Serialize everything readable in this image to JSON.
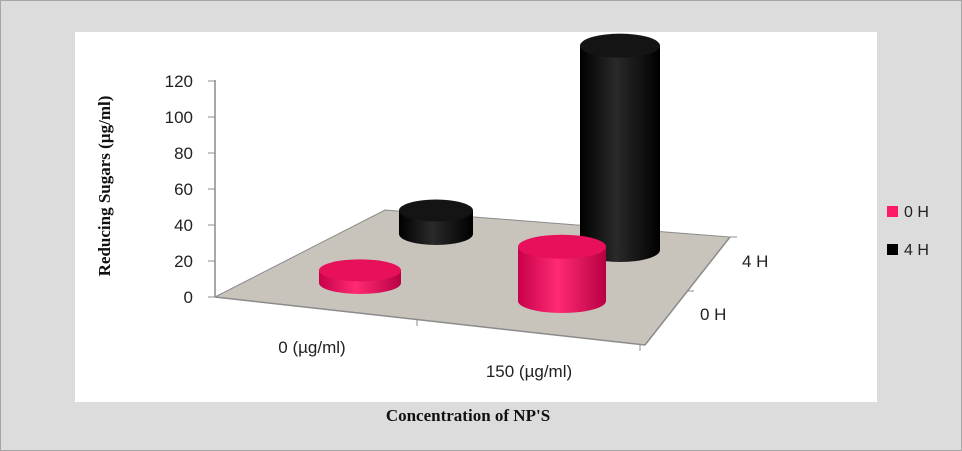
{
  "chart_data": {
    "type": "bar",
    "style": "3d-cylinder",
    "categories": [
      "0 (µg/ml)",
      "150 (µg/ml)"
    ],
    "depth_categories": [
      "0 H",
      "4 H"
    ],
    "series": [
      {
        "name": "0 H",
        "values": [
          7,
          30
        ],
        "color": "#ff1a66"
      },
      {
        "name": "4 H",
        "values": [
          13,
          113
        ],
        "color": "#000000"
      }
    ],
    "ylabel": "Reducing Sugars (µg/ml)",
    "xlabel": "Concentration of NP'S",
    "ylim": [
      0,
      120
    ],
    "yticks": [
      "0",
      "20",
      "40",
      "60",
      "80",
      "100",
      "120"
    ],
    "legend_position": "right",
    "floor_color": "#c8c4bc"
  }
}
